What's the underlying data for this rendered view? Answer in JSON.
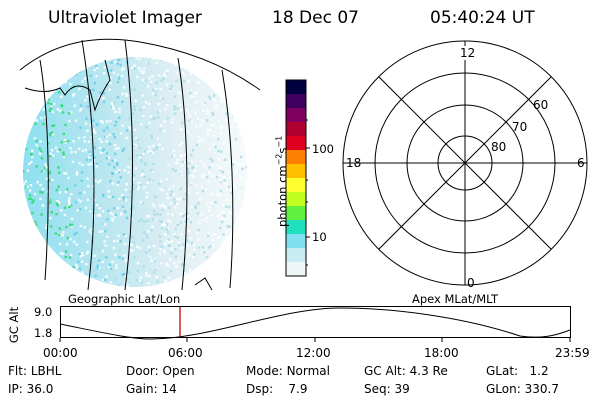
{
  "header": {
    "instrument": "Ultraviolet Imager",
    "date": "18 Dec 07",
    "time": "05:40:24 UT"
  },
  "colorbar": {
    "unit_label": "photon cm",
    "unit_exp1": "−2",
    "unit_s": "s",
    "unit_exp2": "−1",
    "tick_100": "100",
    "tick_10": "10",
    "colors": [
      "#000040",
      "#400060",
      "#800060",
      "#b00030",
      "#e00020",
      "#ff8000",
      "#ffc000",
      "#ffff30",
      "#c0ff20",
      "#60f040",
      "#20e0c0",
      "#80e0f0",
      "#c8ecf4",
      "#eef6f8"
    ]
  },
  "polar_plot": {
    "label_top": "12",
    "label_left": "18",
    "label_right": "6",
    "label_bottom": "0",
    "ring_60": "60",
    "ring_70": "70",
    "ring_80": "80"
  },
  "timeline": {
    "left_caption": "Geographic Lat/Lon",
    "right_caption": "Apex MLat/MLT",
    "axis_title": "GC Alt",
    "y_top": "9.0",
    "y_bottom": "1.8",
    "ticks": [
      "00:00",
      "06:00",
      "12:00",
      "18:00",
      "23:59"
    ],
    "marker_color": "#cc0000"
  },
  "status": {
    "flt_label": "Flt:",
    "flt_value": "LBHL",
    "door_label": "Door:",
    "door_value": "Open",
    "mode_label": "Mode:",
    "mode_value": "Normal",
    "gcalt_label": "GC Alt:",
    "gcalt_value": "4.3 Re",
    "glat_label": "GLat:",
    "glat_value": "1.2",
    "ip_label": "IP:",
    "ip_value": "36.0",
    "gain_label": "Gain:",
    "gain_value": "14",
    "dsp_label": "Dsp:",
    "dsp_value": "7.9",
    "seq_label": "Seq:",
    "seq_value": "39",
    "glon_label": "GLon:",
    "glon_value": "330.7"
  }
}
